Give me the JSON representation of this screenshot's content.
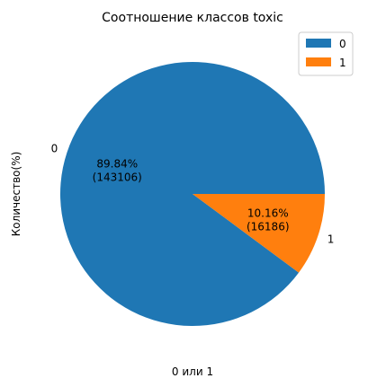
{
  "chart_data": {
    "type": "pie",
    "title": "Соотношение классов toxic",
    "xlabel": "0 или 1",
    "ylabel": "Количество(%)",
    "legend_position": "top-right",
    "slices": [
      {
        "label": "0",
        "value": 143106,
        "percent_label": "89.84%",
        "count_label": "(143106)",
        "color": "#1f77b4"
      },
      {
        "label": "1",
        "value": 16186,
        "percent_label": "10.16%",
        "count_label": "(16186)",
        "color": "#ff7f0e"
      }
    ]
  }
}
